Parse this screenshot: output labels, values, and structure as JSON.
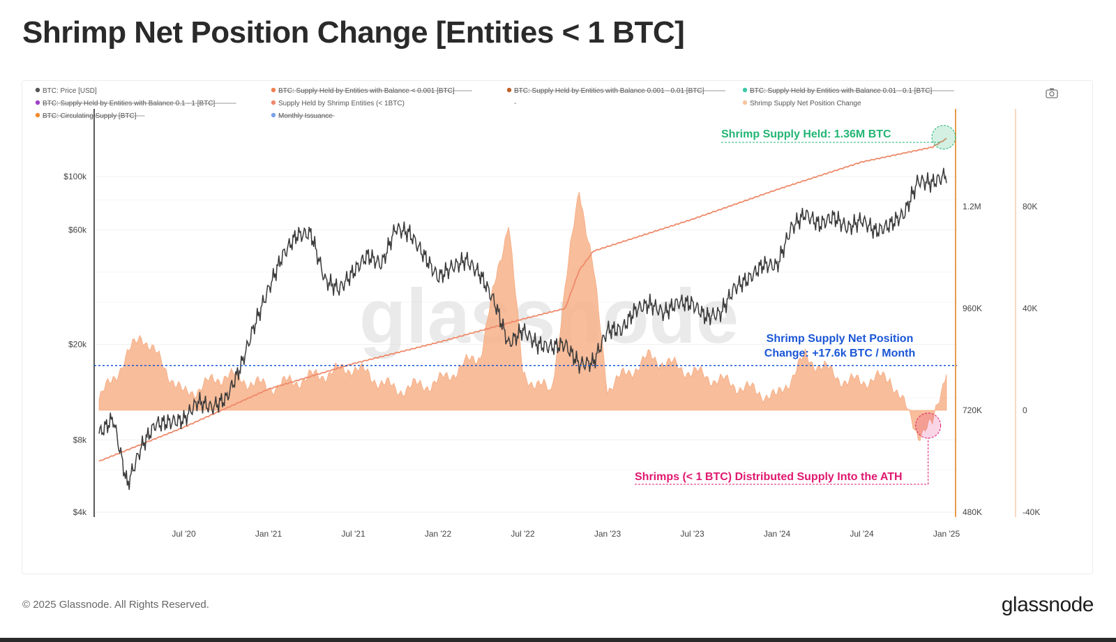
{
  "title": "Shrimp Net Position Change [Entities < 1 BTC]",
  "footer": {
    "copyright": "© 2025 Glassnode. All Rights Reserved.",
    "logo": "glassnode"
  },
  "watermark": "glassnode",
  "colors": {
    "price": "#3a3a3a",
    "supply": "#ee8a6a",
    "net_change": "#f7b28a",
    "circulating": "#f08c30",
    "issuance": "#2f5fd0",
    "green": "#22b573",
    "blue": "#1a56d6",
    "pink": "#e0186e"
  },
  "chart_data": {
    "type": "line",
    "legend": [
      {
        "label": "BTC: Price [USD]",
        "color": "#555555",
        "struck": false
      },
      {
        "label": "BTC: Supply Held by Entities with Balance < 0.001 [BTC]",
        "color": "#f08050",
        "struck": true
      },
      {
        "label": "BTC: Supply Held by Entities with Balance 0.001 - 0.01 [BTC]",
        "color": "#c0622a",
        "struck": true
      },
      {
        "label": "BTC: Supply Held by Entities with Balance 0.01 - 0.1 [BTC]",
        "color": "#3ec7a6",
        "struck": true
      },
      {
        "label": "BTC: Supply Held by Entities with Balance 0.1 - 1 [BTC]",
        "color": "#a040c8",
        "struck": true
      },
      {
        "label": "Supply Held by Shrimp Entities (< 1BTC)",
        "color": "#ee8a6a",
        "struck": false
      },
      {
        "label": "-",
        "color": "#ffffff",
        "struck": false
      },
      {
        "label": "Shrimp Supply Net Position Change",
        "color": "#f7c4a0",
        "struck": false
      },
      {
        "label": "BTC: Circulating Supply [BTC]",
        "color": "#f08c30",
        "struck": true
      },
      {
        "label": "Monthly Issuance",
        "color": "#7aa2e8",
        "struck": true
      }
    ],
    "x_axis": {
      "ticks": [
        "Jul '20",
        "Jan '21",
        "Jul '21",
        "Jan '22",
        "Jul '22",
        "Jan '23",
        "Jul '23",
        "Jan '24",
        "Jul '24",
        "Jan '25"
      ],
      "range": [
        "2020-01",
        "2025-01"
      ]
    },
    "y_left": {
      "scale": "log",
      "ticks": [
        "$4k",
        "$8k",
        "$20k",
        "$60k",
        "$100k"
      ],
      "tick_values": [
        4000,
        8000,
        20000,
        60000,
        100000
      ]
    },
    "y_right1": {
      "ticks": [
        "480K",
        "720K",
        "960K",
        "1.2M"
      ],
      "tick_values": [
        480000,
        720000,
        960000,
        1200000
      ]
    },
    "y_right2": {
      "ticks": [
        "-40K",
        "0",
        "40K",
        "80K"
      ],
      "tick_values": [
        -40000,
        0,
        40000,
        80000
      ]
    },
    "series": [
      {
        "name": "BTC: Price [USD]",
        "axis": "left",
        "x": [
          "2020-01",
          "2020-02",
          "2020-03",
          "2020-04",
          "2020-05",
          "2020-06",
          "2020-07",
          "2020-08",
          "2020-09",
          "2020-10",
          "2020-11",
          "2020-12",
          "2021-01",
          "2021-02",
          "2021-03",
          "2021-04",
          "2021-05",
          "2021-06",
          "2021-07",
          "2021-08",
          "2021-09",
          "2021-10",
          "2021-11",
          "2021-12",
          "2022-01",
          "2022-02",
          "2022-03",
          "2022-04",
          "2022-05",
          "2022-06",
          "2022-07",
          "2022-08",
          "2022-09",
          "2022-10",
          "2022-11",
          "2022-12",
          "2023-01",
          "2023-02",
          "2023-03",
          "2023-04",
          "2023-05",
          "2023-06",
          "2023-07",
          "2023-08",
          "2023-09",
          "2023-10",
          "2023-11",
          "2023-12",
          "2024-01",
          "2024-02",
          "2024-03",
          "2024-04",
          "2024-05",
          "2024-06",
          "2024-07",
          "2024-08",
          "2024-09",
          "2024-10",
          "2024-11",
          "2024-12",
          "2025-01"
        ],
        "y": [
          8500,
          9800,
          5200,
          7500,
          9300,
          9500,
          9700,
          11600,
          10900,
          11900,
          16000,
          24000,
          34000,
          47000,
          57000,
          58000,
          37000,
          34000,
          40000,
          47000,
          43000,
          61000,
          58000,
          47000,
          38000,
          42000,
          45000,
          39000,
          30000,
          20000,
          23000,
          20000,
          19500,
          20000,
          16500,
          16800,
          23000,
          23000,
          28000,
          29500,
          27000,
          30000,
          29500,
          26000,
          27000,
          34500,
          37500,
          43000,
          42500,
          61000,
          70000,
          63000,
          68000,
          61000,
          66000,
          59000,
          63000,
          70000,
          96000,
          94000,
          102000
        ]
      },
      {
        "name": "Supply Held by Shrimp Entities (< 1BTC)",
        "axis": "right1",
        "x": [
          "2020-01",
          "2020-07",
          "2021-01",
          "2021-07",
          "2022-01",
          "2022-07",
          "2022-10",
          "2022-11",
          "2022-12",
          "2023-07",
          "2024-01",
          "2024-07",
          "2024-12",
          "2025-01"
        ],
        "y": [
          600000,
          680000,
          770000,
          830000,
          880000,
          935000,
          960000,
          1050000,
          1095000,
          1170000,
          1240000,
          1305000,
          1340000,
          1360000
        ]
      },
      {
        "name": "Shrimp Supply Net Position Change",
        "axis": "right2",
        "x": [
          "2020-01",
          "2020-04",
          "2020-07",
          "2020-10",
          "2021-01",
          "2021-04",
          "2021-07",
          "2021-10",
          "2022-01",
          "2022-04",
          "2022-06",
          "2022-07",
          "2022-09",
          "2022-11",
          "2022-12",
          "2023-01",
          "2023-04",
          "2023-07",
          "2023-10",
          "2024-01",
          "2024-03",
          "2024-06",
          "2024-09",
          "2024-11",
          "2024-12",
          "2025-01"
        ],
        "y": [
          4000,
          30000,
          6000,
          14000,
          9000,
          13000,
          17000,
          8000,
          11000,
          22000,
          75000,
          14000,
          7000,
          88000,
          55000,
          9000,
          21000,
          15000,
          10000,
          5000,
          21000,
          11000,
          13000,
          -9000,
          -6000,
          17000
        ]
      }
    ],
    "annotations": [
      {
        "text": "Shrimp Supply Held: 1.36M BTC",
        "color": "#22b573"
      },
      {
        "text": "Shrimp Supply Net Position",
        "text2": "Change: +17.6k BTC / Month",
        "color": "#1a56d6",
        "value": 17600
      },
      {
        "text": "Shrimps (< 1 BTC) Distributed Supply Into the ATH",
        "color": "#e0186e"
      }
    ]
  }
}
